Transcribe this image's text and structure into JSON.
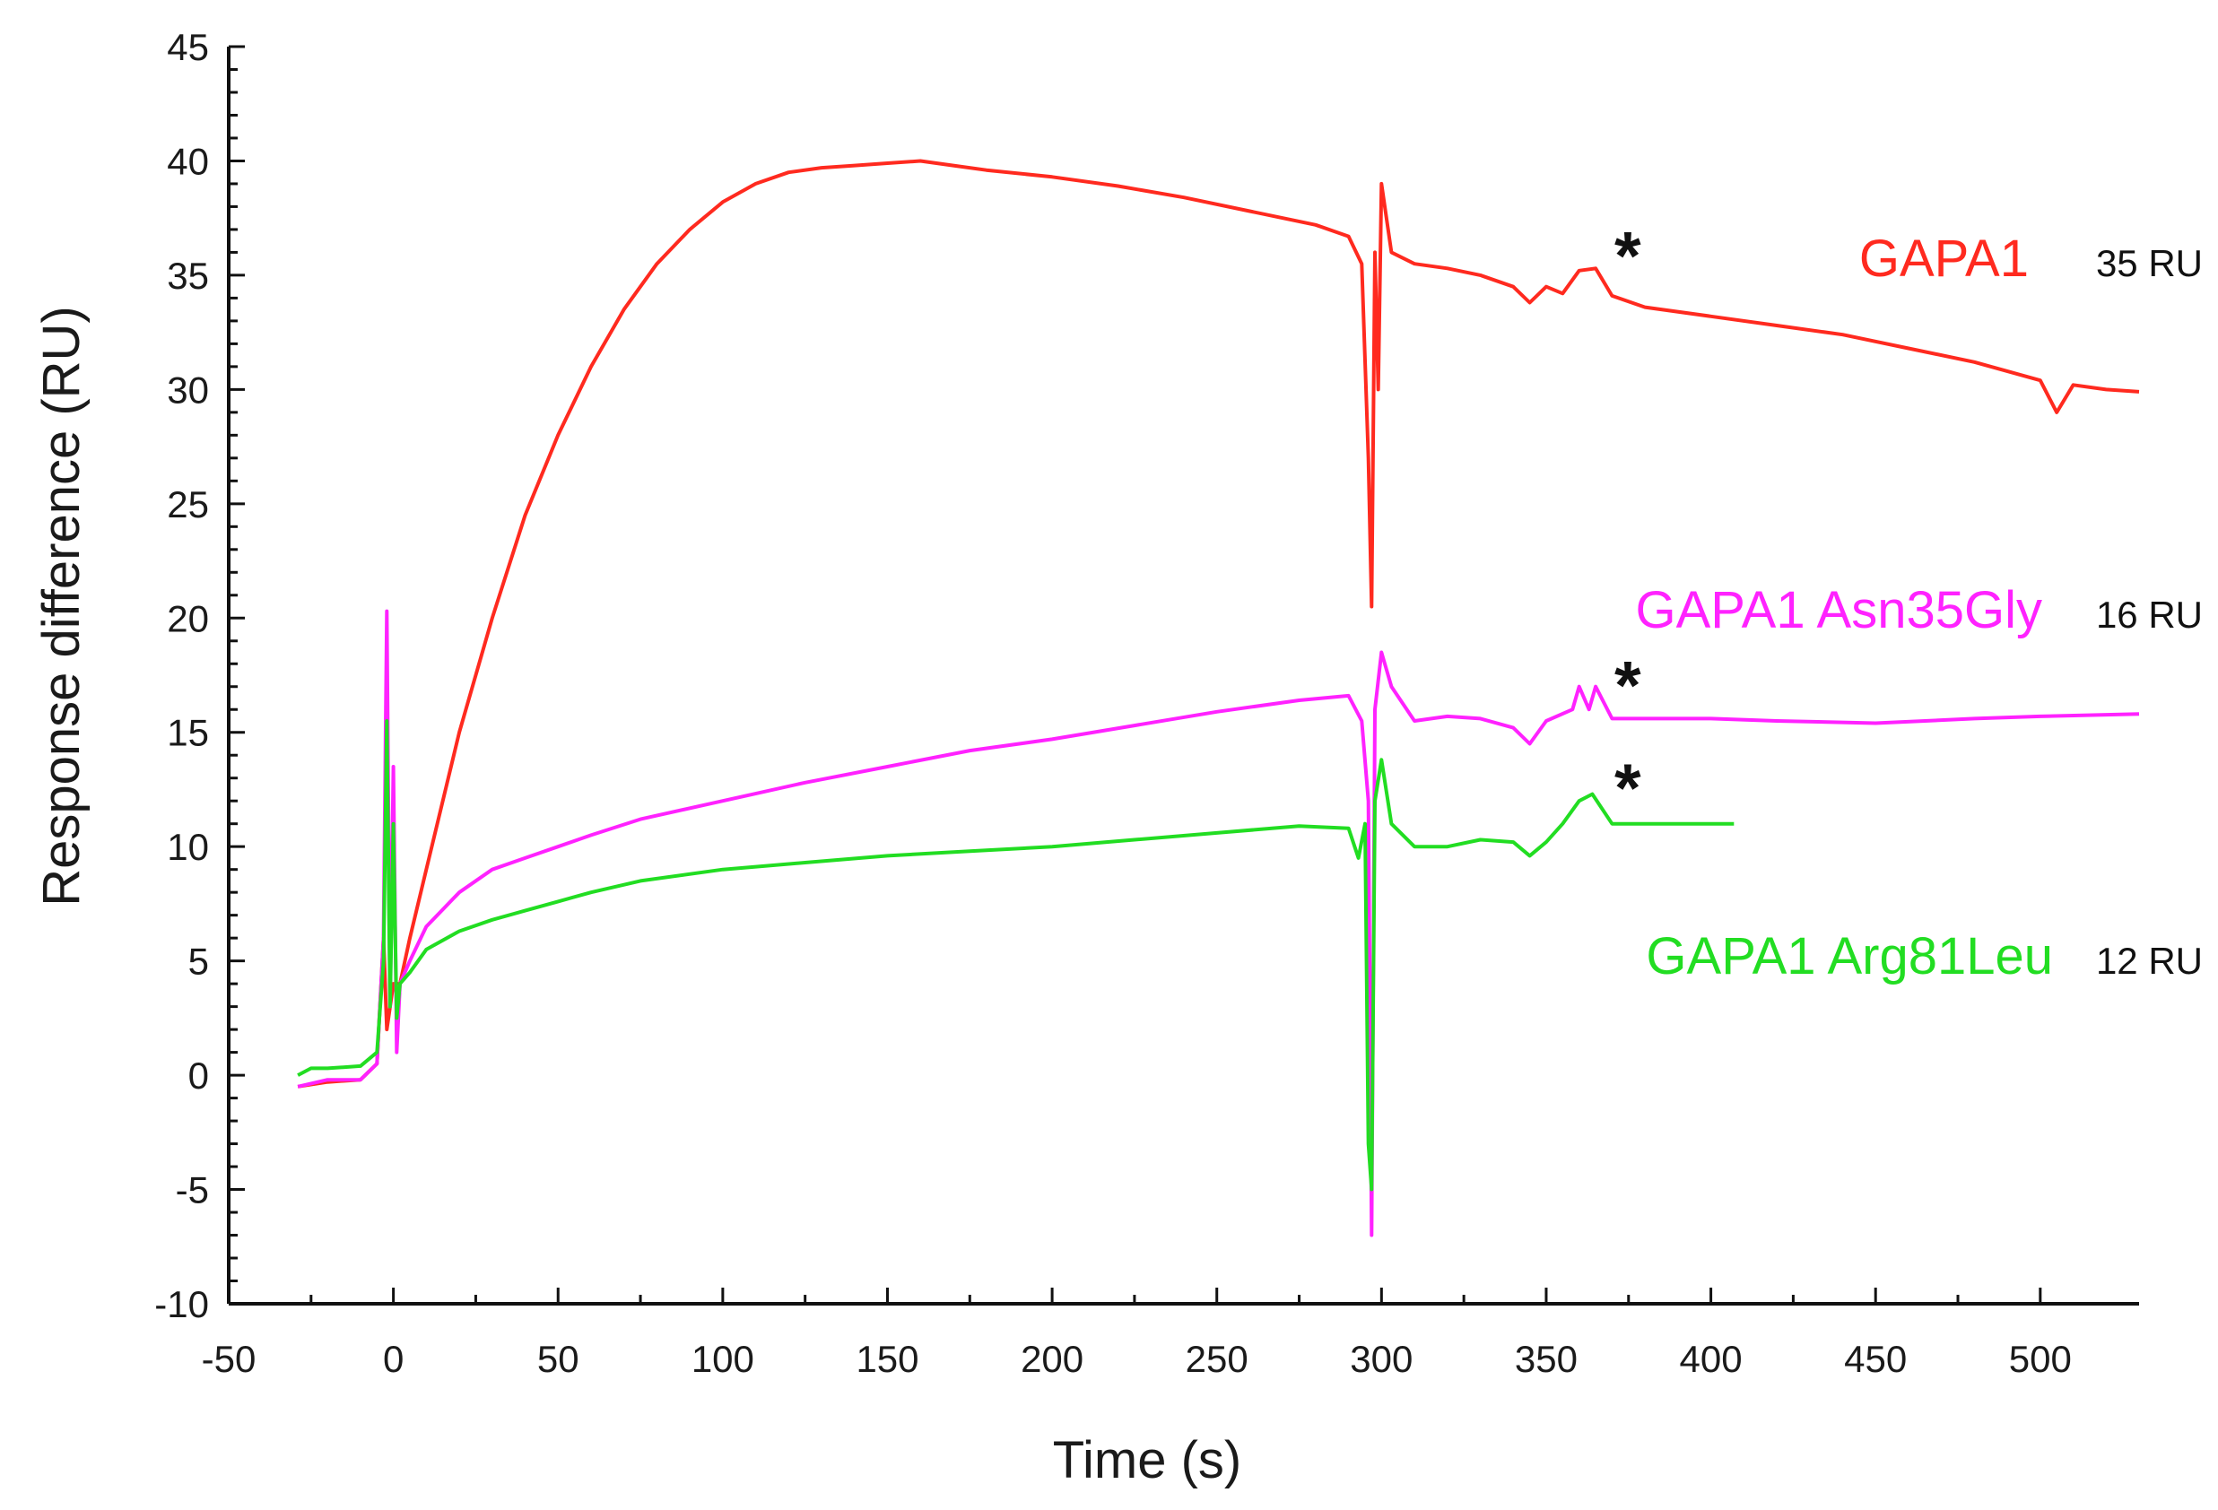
{
  "chart_data": {
    "type": "line",
    "xlabel": "Time (s)",
    "ylabel": "Response difference (RU)",
    "xlim": [
      -50,
      530
    ],
    "ylim": [
      -10,
      45
    ],
    "xticks": [
      -50,
      0,
      50,
      100,
      150,
      200,
      250,
      300,
      350,
      400,
      450,
      500
    ],
    "yticks": [
      -10,
      -5,
      0,
      5,
      10,
      15,
      20,
      25,
      30,
      35,
      40,
      45
    ],
    "grid": false,
    "legend": "direct labels at right",
    "series": [
      {
        "name": "GAPA1",
        "value_label": "35 RU",
        "color": "#ff2a1f",
        "asterisk": [
          372,
          35.3
        ],
        "points": [
          [
            -29,
            -0.5
          ],
          [
            -20,
            -0.3
          ],
          [
            -10,
            -0.2
          ],
          [
            -5,
            0.5
          ],
          [
            -3,
            6
          ],
          [
            -2,
            2
          ],
          [
            0,
            4
          ],
          [
            2,
            4
          ],
          [
            5,
            6
          ],
          [
            10,
            9
          ],
          [
            20,
            15
          ],
          [
            30,
            20
          ],
          [
            40,
            24.5
          ],
          [
            50,
            28
          ],
          [
            60,
            31
          ],
          [
            70,
            33.5
          ],
          [
            80,
            35.5
          ],
          [
            90,
            37
          ],
          [
            100,
            38.2
          ],
          [
            110,
            39
          ],
          [
            120,
            39.5
          ],
          [
            130,
            39.7
          ],
          [
            140,
            39.8
          ],
          [
            150,
            39.9
          ],
          [
            160,
            40
          ],
          [
            170,
            39.8
          ],
          [
            180,
            39.6
          ],
          [
            200,
            39.3
          ],
          [
            220,
            38.9
          ],
          [
            240,
            38.4
          ],
          [
            260,
            37.8
          ],
          [
            280,
            37.2
          ],
          [
            290,
            36.7
          ],
          [
            294,
            35.5
          ],
          [
            296,
            27
          ],
          [
            297,
            20.5
          ],
          [
            298,
            36
          ],
          [
            299,
            30
          ],
          [
            300,
            39
          ],
          [
            303,
            36
          ],
          [
            310,
            35.5
          ],
          [
            320,
            35.3
          ],
          [
            330,
            35
          ],
          [
            340,
            34.5
          ],
          [
            345,
            33.8
          ],
          [
            350,
            34.5
          ],
          [
            355,
            34.2
          ],
          [
            360,
            35.2
          ],
          [
            365,
            35.3
          ],
          [
            370,
            34.1
          ],
          [
            380,
            33.6
          ],
          [
            400,
            33.2
          ],
          [
            420,
            32.8
          ],
          [
            440,
            32.4
          ],
          [
            460,
            31.8
          ],
          [
            480,
            31.2
          ],
          [
            500,
            30.4
          ],
          [
            505,
            29
          ],
          [
            510,
            30.2
          ],
          [
            520,
            30
          ],
          [
            530,
            29.9
          ]
        ]
      },
      {
        "name": "GAPA1 Asn35Gly",
        "value_label": "16 RU",
        "color": "#ff22ff",
        "asterisk": [
          372,
          16.5
        ],
        "points": [
          [
            -29,
            -0.5
          ],
          [
            -20,
            -0.2
          ],
          [
            -10,
            -0.2
          ],
          [
            -5,
            0.5
          ],
          [
            -3,
            6
          ],
          [
            -2,
            20.3
          ],
          [
            -1,
            3
          ],
          [
            0,
            13.5
          ],
          [
            1,
            1
          ],
          [
            2,
            4
          ],
          [
            5,
            5
          ],
          [
            10,
            6.5
          ],
          [
            20,
            8
          ],
          [
            30,
            9
          ],
          [
            40,
            9.5
          ],
          [
            50,
            10
          ],
          [
            60,
            10.5
          ],
          [
            75,
            11.2
          ],
          [
            100,
            12
          ],
          [
            125,
            12.8
          ],
          [
            150,
            13.5
          ],
          [
            175,
            14.2
          ],
          [
            200,
            14.7
          ],
          [
            225,
            15.3
          ],
          [
            250,
            15.9
          ],
          [
            275,
            16.4
          ],
          [
            290,
            16.6
          ],
          [
            294,
            15.5
          ],
          [
            296,
            12
          ],
          [
            297,
            -7
          ],
          [
            298,
            16
          ],
          [
            300,
            18.5
          ],
          [
            303,
            17
          ],
          [
            310,
            15.5
          ],
          [
            320,
            15.7
          ],
          [
            330,
            15.6
          ],
          [
            340,
            15.2
          ],
          [
            345,
            14.5
          ],
          [
            350,
            15.5
          ],
          [
            358,
            16
          ],
          [
            360,
            17
          ],
          [
            363,
            16
          ],
          [
            365,
            17
          ],
          [
            370,
            15.6
          ],
          [
            380,
            15.6
          ],
          [
            400,
            15.6
          ],
          [
            420,
            15.5
          ],
          [
            450,
            15.4
          ],
          [
            480,
            15.6
          ],
          [
            500,
            15.7
          ],
          [
            530,
            15.8
          ]
        ]
      },
      {
        "name": "GAPA1 Arg81Leu",
        "value_label": "12 RU",
        "color": "#22dd22",
        "asterisk": [
          372,
          12
        ],
        "points": [
          [
            -29,
            0
          ],
          [
            -25,
            0.3
          ],
          [
            -20,
            0.3
          ],
          [
            -10,
            0.4
          ],
          [
            -5,
            1
          ],
          [
            -3,
            5
          ],
          [
            -2,
            15.5
          ],
          [
            -1,
            3
          ],
          [
            0,
            11
          ],
          [
            1,
            2.5
          ],
          [
            2,
            4
          ],
          [
            5,
            4.5
          ],
          [
            10,
            5.5
          ],
          [
            20,
            6.3
          ],
          [
            30,
            6.8
          ],
          [
            40,
            7.2
          ],
          [
            50,
            7.6
          ],
          [
            60,
            8
          ],
          [
            75,
            8.5
          ],
          [
            100,
            9
          ],
          [
            125,
            9.3
          ],
          [
            150,
            9.6
          ],
          [
            175,
            9.8
          ],
          [
            200,
            10
          ],
          [
            225,
            10.3
          ],
          [
            250,
            10.6
          ],
          [
            275,
            10.9
          ],
          [
            290,
            10.8
          ],
          [
            293,
            9.5
          ],
          [
            295,
            11
          ],
          [
            296,
            -3
          ],
          [
            297,
            -5
          ],
          [
            298,
            12
          ],
          [
            300,
            13.8
          ],
          [
            303,
            11
          ],
          [
            310,
            10
          ],
          [
            320,
            10
          ],
          [
            330,
            10.3
          ],
          [
            340,
            10.2
          ],
          [
            345,
            9.6
          ],
          [
            350,
            10.2
          ],
          [
            355,
            11
          ],
          [
            360,
            12
          ],
          [
            364,
            12.3
          ],
          [
            370,
            11
          ],
          [
            380,
            11
          ],
          [
            390,
            11
          ],
          [
            400,
            11
          ],
          [
            407,
            11
          ]
        ]
      }
    ]
  }
}
